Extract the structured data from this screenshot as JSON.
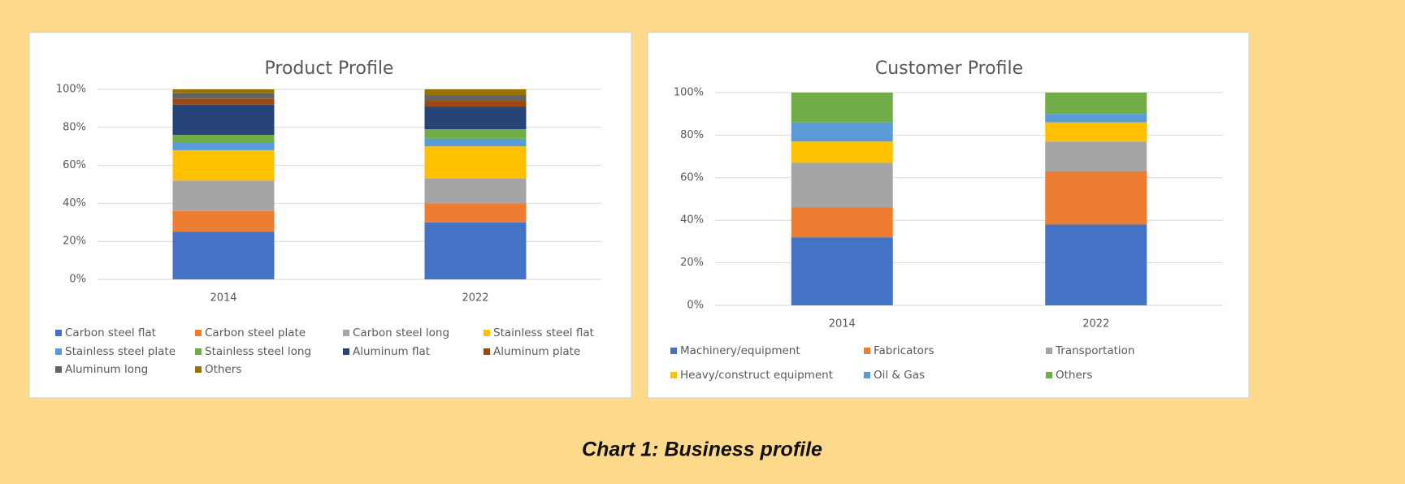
{
  "caption": "Chart 1: Business profile",
  "chart_data": [
    {
      "type": "stacked_bar",
      "title": "Product Profile",
      "categories": [
        "2014",
        "2022"
      ],
      "ylim": [
        0,
        100
      ],
      "yticks": [
        {
          "value": 0,
          "label": "0%"
        },
        {
          "value": 20,
          "label": "20%"
        },
        {
          "value": 40,
          "label": "40%"
        },
        {
          "value": 60,
          "label": "60%"
        },
        {
          "value": 80,
          "label": "80%"
        },
        {
          "value": 100,
          "label": "100%"
        }
      ],
      "grid": true,
      "series": [
        {
          "name": "Carbon steel flat",
          "color": "#4472c4",
          "values": [
            25,
            30
          ]
        },
        {
          "name": "Carbon steel plate",
          "color": "#ed7d31",
          "values": [
            11,
            10
          ]
        },
        {
          "name": "Carbon steel long",
          "color": "#a5a5a5",
          "values": [
            16,
            13
          ]
        },
        {
          "name": "Stainless steel flat",
          "color": "#ffc000",
          "values": [
            16,
            17
          ]
        },
        {
          "name": "Stainless steel plate",
          "color": "#5b9bd5",
          "values": [
            4,
            4
          ]
        },
        {
          "name": "Stainless steel long",
          "color": "#70ad47",
          "values": [
            4,
            5
          ]
        },
        {
          "name": "Aluminum flat",
          "color": "#264478",
          "values": [
            16,
            12
          ]
        },
        {
          "name": "Aluminum plate",
          "color": "#9e480e",
          "values": [
            3,
            3
          ]
        },
        {
          "name": "Aluminum long",
          "color": "#636363",
          "values": [
            3,
            3
          ]
        },
        {
          "name": "Others",
          "color": "#997300",
          "values": [
            2,
            3
          ]
        }
      ]
    },
    {
      "type": "stacked_bar",
      "title": "Customer Profile",
      "categories": [
        "2014",
        "2022"
      ],
      "ylim": [
        0,
        100
      ],
      "yticks": [
        {
          "value": 0,
          "label": "0%"
        },
        {
          "value": 20,
          "label": "20%"
        },
        {
          "value": 40,
          "label": "40%"
        },
        {
          "value": 60,
          "label": "60%"
        },
        {
          "value": 80,
          "label": "80%"
        },
        {
          "value": 100,
          "label": "100%"
        }
      ],
      "grid": true,
      "series": [
        {
          "name": "Machinery/equipment",
          "color": "#4472c4",
          "values": [
            32,
            38
          ]
        },
        {
          "name": "Fabricators",
          "color": "#ed7d31",
          "values": [
            14,
            25
          ]
        },
        {
          "name": "Transportation",
          "color": "#a5a5a5",
          "values": [
            21,
            14
          ]
        },
        {
          "name": "Heavy/construct equipment",
          "color": "#ffc000",
          "values": [
            10,
            9
          ]
        },
        {
          "name": "Oil & Gas",
          "color": "#5b9bd5",
          "values": [
            9,
            4
          ]
        },
        {
          "name": "Others",
          "color": "#70ad47",
          "values": [
            14,
            10
          ]
        }
      ]
    }
  ]
}
